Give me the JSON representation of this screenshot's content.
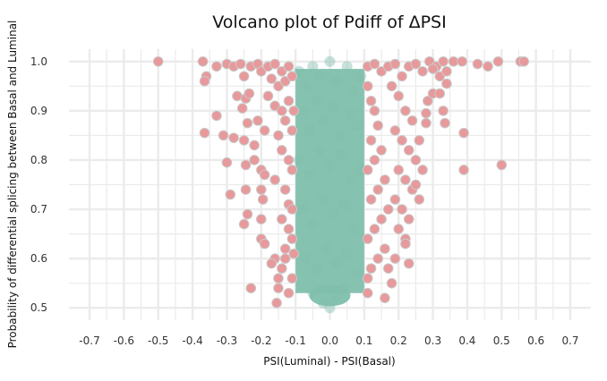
{
  "chart_data": {
    "type": "scatter",
    "title": "Volcano plot of Pdiff of ΔPSI",
    "xlabel": "PSI(Luminal) - PSI(Basal)",
    "ylabel": "Probability of differential splicing between Basal and Luminal",
    "xlim": [
      -0.76,
      0.76
    ],
    "ylim": [
      0.475,
      1.025
    ],
    "x_ticks": [
      -0.7,
      -0.6,
      -0.5,
      -0.4,
      -0.3,
      -0.2,
      -0.1,
      0.0,
      0.1,
      0.2,
      0.3,
      0.4,
      0.5,
      0.6,
      0.7
    ],
    "x_tick_labels": [
      "-0.7",
      "-0.6",
      "-0.5",
      "-0.4",
      "-0.3",
      "-0.2",
      "-0.1",
      "0.0",
      "0.1",
      "0.2",
      "0.3",
      "0.4",
      "0.5",
      "0.6",
      "0.7"
    ],
    "y_ticks": [
      0.5,
      0.6,
      0.7,
      0.8,
      0.9,
      1.0
    ],
    "y_tick_labels": [
      "0.5",
      "0.6",
      "0.7",
      "0.8",
      "0.9",
      "1.0"
    ],
    "grid": true,
    "legend": "none",
    "colors": {
      "significant": "#e8999b",
      "significant_edge": "#c9c9c9",
      "not_significant": "#80bfac",
      "grid": "#ebebeb"
    },
    "series": [
      {
        "color": "#80bfac",
        "x_range": [
          -0.1,
          0.1
        ],
        "points": [
          [
            -0.09,
            0.98
          ],
          [
            -0.07,
            0.95
          ],
          [
            -0.05,
            0.99
          ],
          [
            -0.03,
            0.97
          ],
          [
            0.0,
            1.0
          ],
          [
            0.02,
            0.96
          ],
          [
            0.05,
            0.99
          ],
          [
            0.07,
            0.94
          ],
          [
            0.09,
            0.97
          ],
          [
            -0.08,
            0.9
          ],
          [
            -0.06,
            0.86
          ],
          [
            -0.04,
            0.92
          ],
          [
            -0.02,
            0.88
          ],
          [
            0.01,
            0.91
          ],
          [
            0.03,
            0.85
          ],
          [
            0.06,
            0.89
          ],
          [
            0.08,
            0.87
          ],
          [
            -0.09,
            0.8
          ],
          [
            -0.06,
            0.77
          ],
          [
            -0.03,
            0.82
          ],
          [
            0.0,
            0.79
          ],
          [
            0.03,
            0.81
          ],
          [
            0.06,
            0.76
          ],
          [
            0.09,
            0.78
          ],
          [
            -0.08,
            0.7
          ],
          [
            -0.05,
            0.67
          ],
          [
            -0.02,
            0.72
          ],
          [
            0.01,
            0.69
          ],
          [
            0.04,
            0.71
          ],
          [
            0.07,
            0.66
          ],
          [
            -0.07,
            0.6
          ],
          [
            -0.04,
            0.58
          ],
          [
            -0.01,
            0.62
          ],
          [
            0.02,
            0.59
          ],
          [
            0.05,
            0.61
          ],
          [
            0.08,
            0.57
          ],
          [
            -0.05,
            0.53
          ],
          [
            -0.02,
            0.51
          ],
          [
            0.0,
            0.5
          ],
          [
            0.02,
            0.52
          ],
          [
            0.04,
            0.54
          ]
        ]
      },
      {
        "color": "#e8999b",
        "points": [
          [
            -0.5,
            1.0
          ],
          [
            -0.37,
            1.0
          ],
          [
            -0.36,
            0.97
          ],
          [
            -0.365,
            0.96
          ],
          [
            -0.33,
            0.89
          ],
          [
            -0.365,
            0.855
          ],
          [
            -0.31,
            0.85
          ],
          [
            -0.28,
            0.845
          ],
          [
            -0.3,
            0.795
          ],
          [
            -0.27,
            0.93
          ],
          [
            -0.245,
            0.925
          ],
          [
            -0.235,
            0.935
          ],
          [
            -0.255,
            0.905
          ],
          [
            -0.24,
            0.875
          ],
          [
            -0.25,
            0.84
          ],
          [
            -0.245,
            0.79
          ],
          [
            -0.22,
            0.8
          ],
          [
            -0.2,
            0.78
          ],
          [
            -0.19,
            0.77
          ],
          [
            -0.22,
            0.83
          ],
          [
            -0.21,
            0.88
          ],
          [
            -0.19,
            0.86
          ],
          [
            -0.2,
            0.74
          ],
          [
            -0.195,
            0.72
          ],
          [
            -0.29,
            0.73
          ],
          [
            -0.245,
            0.74
          ],
          [
            -0.24,
            0.69
          ],
          [
            -0.25,
            0.67
          ],
          [
            -0.2,
            0.68
          ],
          [
            -0.2,
            0.64
          ],
          [
            -0.19,
            0.63
          ],
          [
            -0.16,
            0.6
          ],
          [
            -0.17,
            0.59
          ],
          [
            -0.14,
            0.58
          ],
          [
            -0.15,
            0.56
          ],
          [
            -0.15,
            0.54
          ],
          [
            -0.13,
            0.6
          ],
          [
            -0.23,
            0.54
          ],
          [
            -0.155,
            0.51
          ],
          [
            -0.12,
            0.53
          ],
          [
            -0.11,
            0.56
          ],
          [
            -0.33,
            0.99
          ],
          [
            -0.3,
            0.995
          ],
          [
            -0.28,
            0.99
          ],
          [
            -0.26,
            0.995
          ],
          [
            -0.25,
            0.97
          ],
          [
            -0.23,
            0.99
          ],
          [
            -0.21,
            0.995
          ],
          [
            -0.2,
            0.98
          ],
          [
            -0.18,
            0.99
          ],
          [
            -0.17,
            0.965
          ],
          [
            -0.16,
            0.995
          ],
          [
            -0.15,
            0.95
          ],
          [
            -0.14,
            0.98
          ],
          [
            -0.13,
            0.96
          ],
          [
            -0.12,
            0.99
          ],
          [
            -0.11,
            0.97
          ],
          [
            -0.18,
            0.93
          ],
          [
            -0.16,
            0.91
          ],
          [
            -0.14,
            0.9
          ],
          [
            -0.13,
            0.88
          ],
          [
            -0.12,
            0.92
          ],
          [
            -0.11,
            0.86
          ],
          [
            -0.105,
            0.9
          ],
          [
            -0.15,
            0.85
          ],
          [
            -0.14,
            0.82
          ],
          [
            -0.12,
            0.8
          ],
          [
            -0.11,
            0.78
          ],
          [
            -0.16,
            0.76
          ],
          [
            -0.13,
            0.74
          ],
          [
            -0.12,
            0.71
          ],
          [
            -0.11,
            0.7
          ],
          [
            -0.14,
            0.68
          ],
          [
            -0.12,
            0.66
          ],
          [
            -0.11,
            0.64
          ],
          [
            -0.13,
            0.62
          ],
          [
            -0.105,
            0.61
          ],
          [
            0.11,
            0.99
          ],
          [
            0.13,
            0.995
          ],
          [
            0.15,
            0.98
          ],
          [
            0.17,
            0.99
          ],
          [
            0.19,
            0.995
          ],
          [
            0.21,
            0.97
          ],
          [
            0.23,
            0.99
          ],
          [
            0.25,
            0.995
          ],
          [
            0.27,
            0.98
          ],
          [
            0.29,
            1.0
          ],
          [
            0.31,
            0.99
          ],
          [
            0.33,
            1.0
          ],
          [
            0.36,
            1.0
          ],
          [
            0.385,
            1.0
          ],
          [
            0.43,
            0.995
          ],
          [
            0.46,
            0.99
          ],
          [
            0.49,
            1.0
          ],
          [
            0.555,
            1.0
          ],
          [
            0.565,
            1.0
          ],
          [
            0.3,
            0.985
          ],
          [
            0.32,
            0.97
          ],
          [
            0.34,
            0.98
          ],
          [
            0.34,
            0.955
          ],
          [
            0.3,
            0.935
          ],
          [
            0.32,
            0.935
          ],
          [
            0.285,
            0.92
          ],
          [
            0.28,
            0.895
          ],
          [
            0.28,
            0.875
          ],
          [
            0.33,
            0.9
          ],
          [
            0.335,
            0.875
          ],
          [
            0.39,
            0.855
          ],
          [
            0.39,
            0.78
          ],
          [
            0.5,
            0.79
          ],
          [
            0.11,
            0.95
          ],
          [
            0.12,
            0.92
          ],
          [
            0.13,
            0.9
          ],
          [
            0.14,
            0.87
          ],
          [
            0.12,
            0.84
          ],
          [
            0.15,
            0.82
          ],
          [
            0.13,
            0.8
          ],
          [
            0.11,
            0.78
          ],
          [
            0.16,
            0.76
          ],
          [
            0.14,
            0.74
          ],
          [
            0.12,
            0.72
          ],
          [
            0.17,
            0.7
          ],
          [
            0.15,
            0.68
          ],
          [
            0.13,
            0.66
          ],
          [
            0.11,
            0.64
          ],
          [
            0.16,
            0.62
          ],
          [
            0.14,
            0.6
          ],
          [
            0.12,
            0.58
          ],
          [
            0.11,
            0.56
          ],
          [
            0.11,
            0.53
          ],
          [
            0.18,
            0.95
          ],
          [
            0.2,
            0.93
          ],
          [
            0.22,
            0.9
          ],
          [
            0.24,
            0.88
          ],
          [
            0.19,
            0.86
          ],
          [
            0.21,
            0.84
          ],
          [
            0.23,
            0.82
          ],
          [
            0.25,
            0.8
          ],
          [
            0.2,
            0.78
          ],
          [
            0.22,
            0.76
          ],
          [
            0.24,
            0.74
          ],
          [
            0.19,
            0.72
          ],
          [
            0.21,
            0.7
          ],
          [
            0.23,
            0.68
          ],
          [
            0.2,
            0.66
          ],
          [
            0.22,
            0.64
          ],
          [
            0.25,
            0.75
          ],
          [
            0.26,
            0.72
          ],
          [
            0.27,
            0.78
          ],
          [
            0.26,
            0.84
          ],
          [
            0.22,
            0.63
          ],
          [
            0.23,
            0.59
          ],
          [
            0.19,
            0.6
          ],
          [
            0.17,
            0.58
          ],
          [
            0.18,
            0.55
          ],
          [
            0.16,
            0.52
          ]
        ]
      }
    ]
  }
}
